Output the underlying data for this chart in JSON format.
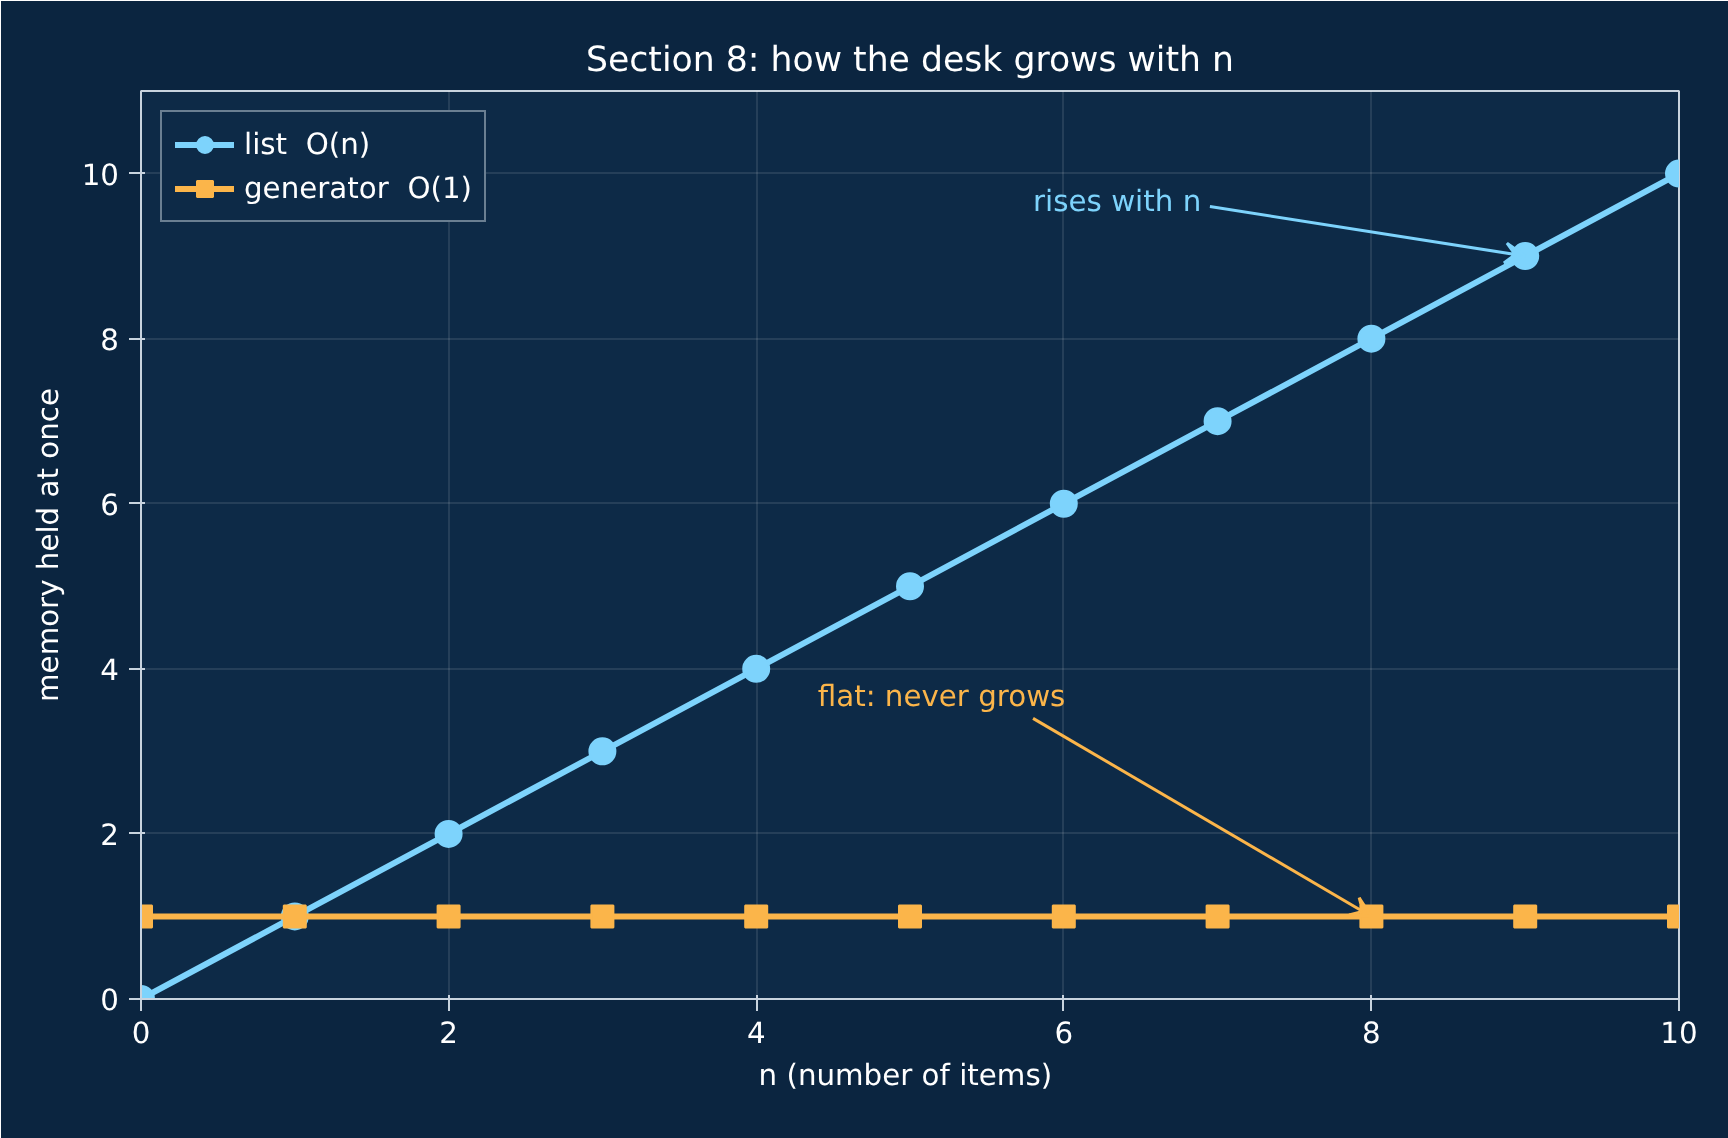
{
  "chart_data": {
    "type": "line",
    "title": "Section 8: how the desk grows with n",
    "xlabel": "n  (number of items)",
    "ylabel": "memory held at once",
    "x": [
      0,
      1,
      2,
      3,
      4,
      5,
      6,
      7,
      8,
      9,
      10
    ],
    "series": [
      {
        "name": "list  O(n)",
        "color": "#7dd3fc",
        "marker": "circle",
        "values": [
          0,
          1,
          2,
          3,
          4,
          5,
          6,
          7,
          8,
          9,
          10
        ]
      },
      {
        "name": "generator  O(1)",
        "color": "#fbb54a",
        "marker": "square",
        "values": [
          1,
          1,
          1,
          1,
          1,
          1,
          1,
          1,
          1,
          1,
          1
        ]
      }
    ],
    "xlim": [
      0,
      10
    ],
    "xticks": [
      0,
      2,
      4,
      6,
      8,
      10
    ],
    "ylim": [
      0,
      11
    ],
    "yticks": [
      0,
      2,
      4,
      6,
      8,
      10
    ],
    "annotations": [
      {
        "text": "rises with n",
        "x": 9,
        "y": 9
      },
      {
        "text": "flat: never grows",
        "x": 8,
        "y": 1
      }
    ],
    "grid": true,
    "legend": "top left",
    "line_style": "solid"
  }
}
